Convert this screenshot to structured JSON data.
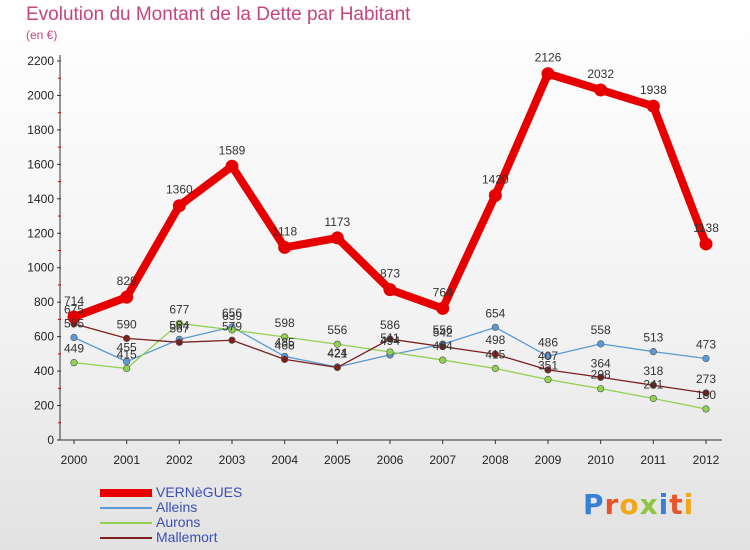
{
  "title": "Evolution du Montant de la Dette par Habitant",
  "unit_label": "(en €)",
  "logo": {
    "text": "Proxiti",
    "letters": [
      {
        "ch": "P",
        "color": "#3a7fd6"
      },
      {
        "ch": "r",
        "color": "#e8552a"
      },
      {
        "ch": "o",
        "color": "#f2a71b"
      },
      {
        "ch": "x",
        "color": "#8dc63f"
      },
      {
        "ch": "i",
        "color": "#3a7fd6"
      },
      {
        "ch": "t",
        "color": "#e8552a"
      },
      {
        "ch": "i",
        "color": "#f2a71b"
      }
    ]
  },
  "chart_data": {
    "type": "line",
    "x": [
      "2000",
      "2001",
      "2002",
      "2003",
      "2004",
      "2005",
      "2006",
      "2007",
      "2008",
      "2009",
      "2010",
      "2011",
      "2012"
    ],
    "ylim": [
      0,
      2200
    ],
    "yticks": [
      0,
      200,
      400,
      600,
      800,
      1000,
      1200,
      1400,
      1600,
      1800,
      2000,
      2200
    ],
    "grid": false,
    "legend_position": "bottom-left",
    "series": [
      {
        "name": "VERNèGUES",
        "color": "#e60000",
        "values": [
          714,
          829,
          1360,
          1589,
          1118,
          1173,
          873,
          764,
          1420,
          2126,
          2032,
          1938,
          1138
        ]
      },
      {
        "name": "Alleins",
        "color": "#5b9bd5",
        "values": [
          595,
          455,
          584,
          656,
          485,
          424,
          494,
          556,
          654,
          486,
          558,
          513,
          473
        ]
      },
      {
        "name": "Aurons",
        "color": "#92d050",
        "values": [
          449,
          415,
          677,
          639,
          598,
          556,
          511,
          464,
          415,
          351,
          298,
          241,
          180
        ]
      },
      {
        "name": "Mallemort",
        "color": "#7b1f1f",
        "values": [
          675,
          590,
          567,
          579,
          468,
          421,
          586,
          542,
          498,
          407,
          364,
          318,
          273
        ]
      }
    ]
  }
}
